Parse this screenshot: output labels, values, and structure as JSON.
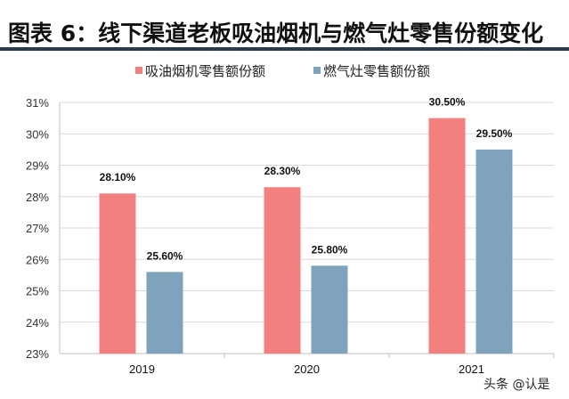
{
  "title": "图表 6：线下渠道老板吸油烟机与燃气灶零售份额变化",
  "watermark": "头条 @认是",
  "chart_data": {
    "type": "bar",
    "categories": [
      "2019",
      "2020",
      "2021"
    ],
    "series": [
      {
        "name": "吸油烟机零售额份额",
        "values": [
          28.1,
          28.3,
          30.5
        ],
        "labels": [
          "28.10%",
          "28.30%",
          "30.50%"
        ],
        "color": "#f47f7f"
      },
      {
        "name": "燃气灶零售额份额",
        "values": [
          25.6,
          25.8,
          29.5
        ],
        "labels": [
          "25.60%",
          "25.80%",
          "29.50%"
        ],
        "color": "#7fa3bd"
      }
    ],
    "ylim": [
      23,
      31
    ],
    "yticks": [
      "23%",
      "24%",
      "25%",
      "26%",
      "27%",
      "28%",
      "29%",
      "30%",
      "31%"
    ],
    "grid": true,
    "legend": "top"
  }
}
